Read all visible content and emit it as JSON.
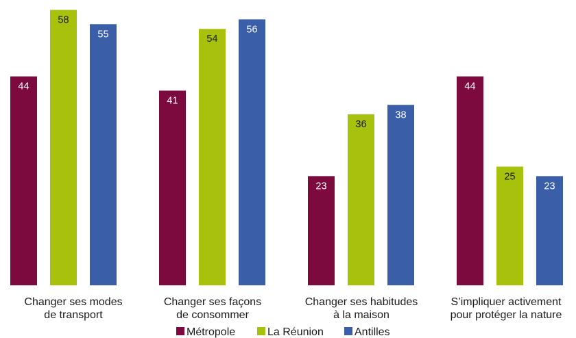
{
  "chart_data": {
    "type": "bar",
    "title": "",
    "xlabel": "",
    "ylabel": "",
    "ylim": [
      0,
      58
    ],
    "grid": false,
    "legend_position": "bottom-center",
    "categories": [
      [
        "Changer ses modes",
        "de transport"
      ],
      [
        "Changer ses façons",
        "de consommer"
      ],
      [
        "Changer ses habitudes",
        "à la maison"
      ],
      [
        "S’impliquer activement",
        "pour protéger la nature"
      ]
    ],
    "series": [
      {
        "name": "Métropole",
        "color": "#7d0a3e",
        "label_color": "#ffffff",
        "values": [
          44,
          41,
          23,
          44
        ]
      },
      {
        "name": "La Réunion",
        "color": "#a7c10d",
        "label_color": "#1a1a1a",
        "values": [
          58,
          54,
          36,
          25
        ]
      },
      {
        "name": "Antilles",
        "color": "#3a5ea8",
        "label_color": "#ffffff",
        "values": [
          55,
          56,
          38,
          23
        ]
      }
    ]
  }
}
